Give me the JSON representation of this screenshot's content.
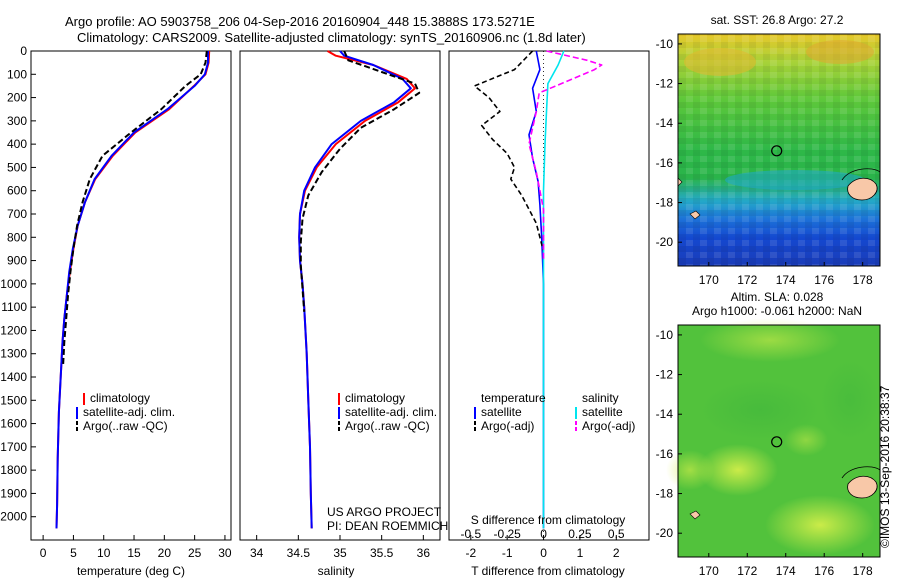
{
  "header": {
    "line1": "Argo profile: AO 5903758_206 04-Sep-2016 20160904_448 15.3888S 173.5271E",
    "line2": "Climatology: CARS2009. Satellite-adjusted climatology: synTS_20160906.nc (1.8d later)"
  },
  "stamp": "©IMOS 13-Sep-2016 20:38:37",
  "colors": {
    "climatology": "#ff0000",
    "satellite_clim": "#0000ff",
    "argo": "#000000",
    "salinity_satellite": "#00e5ee",
    "salinity_argo": "#ff00ff"
  },
  "chart_data": [
    {
      "id": "temperature",
      "type": "line",
      "xlabel": "temperature (deg C)",
      "xlim": [
        -2,
        31
      ],
      "ylim": [
        2100,
        0
      ],
      "xticks": [
        "0",
        "5",
        "10",
        "15",
        "20",
        "25",
        "30"
      ],
      "yticks": [
        "0",
        "100",
        "200",
        "300",
        "400",
        "500",
        "600",
        "700",
        "800",
        "900",
        "1000",
        "1100",
        "1200",
        "1300",
        "1400",
        "1500",
        "1600",
        "1700",
        "1800",
        "1900",
        "2000"
      ],
      "legend": [
        "climatology",
        "satellite-adj. clim.",
        "Argo(..raw -QC)"
      ],
      "series": [
        {
          "name": "climatology",
          "style": "solid",
          "x": [
            27.4,
            27.3,
            26.8,
            24.9,
            20.8,
            15.2,
            11.5,
            8.6,
            6.9,
            5.7,
            5.0,
            4.4,
            3.9,
            3.5,
            3.2,
            3.0,
            2.8,
            2.6,
            2.5,
            2.4,
            2.3,
            2.2
          ],
          "y": [
            0,
            50,
            100,
            150,
            250,
            350,
            450,
            550,
            650,
            750,
            850,
            950,
            1050,
            1150,
            1250,
            1350,
            1450,
            1550,
            1650,
            1750,
            1950,
            2050
          ]
        },
        {
          "name": "satellite-adj. clim.",
          "style": "solid",
          "x": [
            27.2,
            27.2,
            26.7,
            25.0,
            20.5,
            15.0,
            11.3,
            8.5,
            6.9,
            5.7,
            4.9,
            4.3,
            3.9,
            3.5,
            3.2,
            3.0,
            2.8,
            2.6,
            2.5,
            2.4,
            2.3,
            2.2
          ],
          "y": [
            0,
            50,
            100,
            150,
            250,
            350,
            450,
            550,
            650,
            750,
            850,
            950,
            1050,
            1150,
            1250,
            1350,
            1450,
            1550,
            1650,
            1750,
            1950,
            2050
          ]
        },
        {
          "name": "Argo(..raw -QC)",
          "style": "dashed",
          "x": [
            27.0,
            26.8,
            26.0,
            23.5,
            19.5,
            14.5,
            9.8,
            7.7,
            6.5,
            5.6,
            5.0,
            4.5,
            4.1,
            3.8,
            3.5,
            3.3
          ],
          "y": [
            0,
            50,
            100,
            150,
            250,
            350,
            450,
            550,
            650,
            750,
            850,
            950,
            1050,
            1150,
            1250,
            1350
          ]
        }
      ]
    },
    {
      "id": "salinity",
      "type": "line",
      "xlabel": "salinity",
      "xlim": [
        33.8,
        36.2
      ],
      "ylim": [
        2100,
        0
      ],
      "xticks": [
        "34",
        "34.5",
        "35",
        "35.5",
        "36"
      ],
      "legend": [
        "climatology",
        "satellite-adj. clim.",
        "Argo(..raw -QC)"
      ],
      "annotation": [
        "US ARGO PROJECT",
        "PI: DEAN ROEMMICH"
      ],
      "series": [
        {
          "name": "climatology",
          "style": "solid",
          "x": [
            34.85,
            34.95,
            35.4,
            35.8,
            35.9,
            35.7,
            35.3,
            34.95,
            34.72,
            34.58,
            34.52,
            34.51,
            34.52,
            34.55,
            34.57,
            34.6,
            34.62,
            34.64,
            34.65,
            34.66
          ],
          "y": [
            0,
            20,
            60,
            120,
            160,
            220,
            300,
            400,
            500,
            600,
            700,
            800,
            900,
            1000,
            1100,
            1300,
            1500,
            1700,
            1900,
            2050
          ]
        },
        {
          "name": "satellite-adj. clim.",
          "style": "solid",
          "x": [
            35.0,
            35.05,
            35.4,
            35.75,
            35.85,
            35.65,
            35.25,
            34.9,
            34.7,
            34.57,
            34.52,
            34.51,
            34.52,
            34.55,
            34.57,
            34.6,
            34.62,
            34.64,
            34.65,
            34.66
          ],
          "y": [
            0,
            20,
            60,
            120,
            160,
            220,
            300,
            400,
            500,
            600,
            700,
            800,
            900,
            1000,
            1100,
            1300,
            1500,
            1700,
            1900,
            2050
          ]
        },
        {
          "name": "Argo(..raw -QC)",
          "style": "dashed",
          "x": [
            35.05,
            35.1,
            35.5,
            35.9,
            35.95,
            35.65,
            35.25,
            35.0,
            34.78,
            34.62,
            34.55,
            34.53,
            34.53,
            34.55,
            34.57
          ],
          "y": [
            0,
            40,
            90,
            140,
            180,
            250,
            330,
            420,
            520,
            620,
            720,
            820,
            920,
            1020,
            1120
          ]
        }
      ]
    },
    {
      "id": "difference",
      "type": "line",
      "xlabel_top": "S difference from climatology",
      "xlabel": "T difference from climatology",
      "xlim": [
        -2.6,
        2.9
      ],
      "ylim": [
        2100,
        0
      ],
      "xticks": [
        "-2",
        "-1",
        "0",
        "1",
        "2"
      ],
      "xticks_top": [
        "-0.5",
        "-0.25",
        "0",
        "0.25",
        "0.5"
      ],
      "legend_left_title": "temperature",
      "legend_right_title": "salinity",
      "legend_left": [
        "satellite",
        "Argo(-adj)"
      ],
      "legend_right": [
        "satellite",
        "Argo(-adj)"
      ],
      "series": [
        {
          "name": "temperature satellite",
          "style": "solid",
          "x": [
            -0.2,
            -0.1,
            -0.3,
            -0.2,
            -0.4,
            -0.3,
            -0.15,
            -0.1,
            -0.05,
            0,
            0,
            0
          ],
          "y": [
            0,
            80,
            160,
            260,
            360,
            460,
            560,
            660,
            800,
            1000,
            1500,
            2050
          ]
        },
        {
          "name": "temperature Argo(-adj)",
          "style": "dashed",
          "x": [
            -0.3,
            -0.8,
            -1.9,
            -1.5,
            -1.2,
            -1.7,
            -1.4,
            -1.0,
            -0.8,
            -0.9,
            -0.6,
            -0.4,
            -0.2,
            -0.1,
            0
          ],
          "y": [
            0,
            80,
            150,
            200,
            260,
            320,
            380,
            440,
            500,
            550,
            620,
            680,
            740,
            800,
            860
          ]
        },
        {
          "name": "salinity satellite",
          "style": "solid",
          "x": [
            0.14,
            0.1,
            0.03,
            0.02,
            0.01,
            0,
            0,
            0
          ],
          "y": [
            0,
            60,
            140,
            260,
            400,
            600,
            1000,
            2050
          ]
        },
        {
          "name": "salinity Argo(-adj)",
          "style": "dashed",
          "x": [
            0.02,
            0.3,
            0.4,
            0.35,
            0.2,
            -0.03,
            -0.05,
            -0.1,
            -0.05,
            0,
            0
          ],
          "y": [
            0,
            40,
            60,
            80,
            120,
            180,
            260,
            400,
            520,
            680,
            900
          ]
        }
      ]
    },
    {
      "id": "sst-map",
      "type": "heatmap",
      "title": "sat. SST: 26.8  Argo: 27.2",
      "xticks": [
        "170",
        "172",
        "174",
        "176",
        "178"
      ],
      "yticks": [
        "-10",
        "-12",
        "-14",
        "-16",
        "-18",
        "-20"
      ],
      "xlim": [
        168.4,
        178.9
      ],
      "ylim": [
        -21.2,
        -9.5
      ],
      "argo_position": [
        173.53,
        -15.39
      ]
    },
    {
      "id": "sla-map",
      "type": "heatmap",
      "title_line1": "Altim. SLA: 0.028",
      "title_line2": "Argo h1000: -0.061  h2000: NaN",
      "xticks": [
        "170",
        "172",
        "174",
        "176",
        "178"
      ],
      "yticks": [
        "-10",
        "-12",
        "-14",
        "-16",
        "-18",
        "-20"
      ],
      "xlim": [
        168.4,
        178.9
      ],
      "ylim": [
        -21.2,
        -9.5
      ],
      "argo_position": [
        173.53,
        -15.39
      ]
    }
  ]
}
